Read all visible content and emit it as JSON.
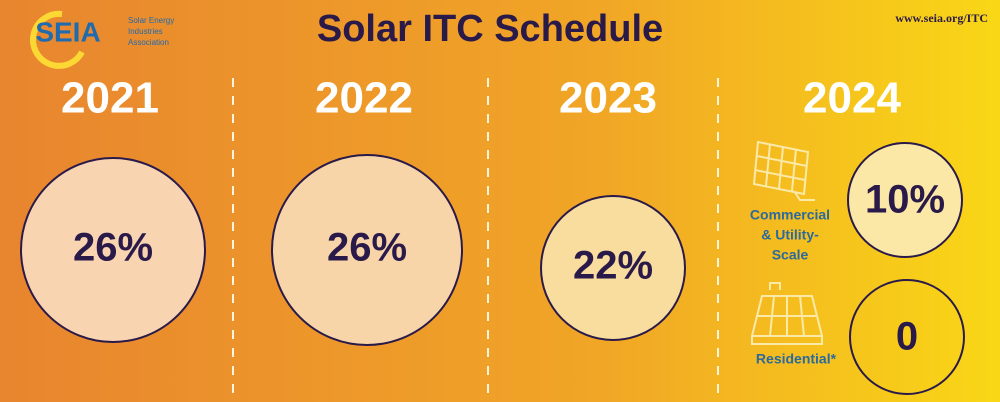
{
  "logo": {
    "name": "SEIA",
    "tagline": [
      "Solar Energy",
      "Industries",
      "Association"
    ]
  },
  "header": {
    "title": "Solar ITC Schedule",
    "url": "www.seia.org/ITC"
  },
  "years": [
    {
      "year": "2021",
      "rate": "26%"
    },
    {
      "year": "2022",
      "rate": "26%"
    },
    {
      "year": "2023",
      "rate": "22%"
    },
    {
      "year": "2024",
      "segments": [
        {
          "label": [
            "Commercial",
            "& Utility-",
            "Scale"
          ],
          "rate": "10%"
        },
        {
          "label": [
            "Residential*"
          ],
          "rate": "0"
        }
      ]
    }
  ]
}
